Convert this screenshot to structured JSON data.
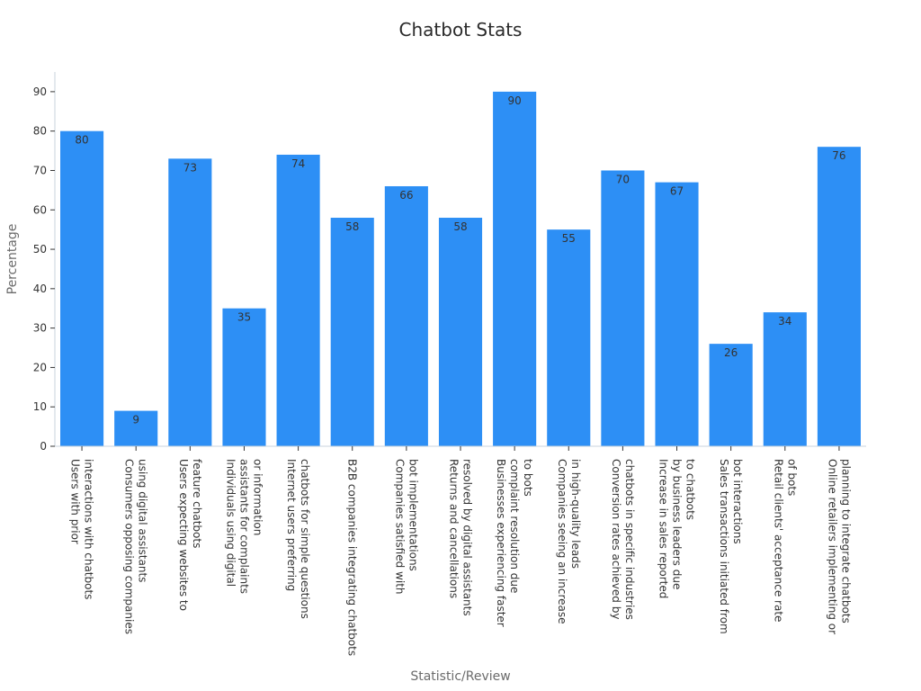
{
  "chart_data": {
    "type": "bar",
    "title": "Chatbot Stats",
    "xlabel": "Statistic/Review",
    "ylabel": "Percentage",
    "ylim": [
      0,
      95
    ],
    "yticks": [
      0,
      10,
      20,
      30,
      40,
      50,
      60,
      70,
      80,
      90
    ],
    "grid": false,
    "bar_color": "#2d8ff5",
    "categories": [
      [
        "Users with prior",
        "interactions with chatbots"
      ],
      [
        "Consumers opposing companies",
        "using digital assistants"
      ],
      [
        "Users expecting websites to",
        "feature chatbots"
      ],
      [
        "Individuals using digital",
        "assistants for complaints",
        "or information"
      ],
      [
        "Internet users preferring",
        "chatbots for simple questions"
      ],
      [
        "B2B companies integrating chatbots"
      ],
      [
        "Companies satisfied with",
        "bot implementations"
      ],
      [
        "Returns and cancellations",
        "resolved by digital assistants"
      ],
      [
        "Businesses experiencing faster",
        "complaint resolution due",
        "to bots"
      ],
      [
        "Companies seeing an increase",
        "in high-quality leads"
      ],
      [
        "Conversion rates achieved by",
        "chatbots in specific industries"
      ],
      [
        "Increase in sales reported",
        "by business leaders due",
        "to chatbots"
      ],
      [
        "Sales transactions initiated from",
        "bot interactions"
      ],
      [
        "Retail clients' acceptance rate",
        "of bots"
      ],
      [
        "Online retailers implementing or",
        "planning to integrate chatbots"
      ]
    ],
    "values": [
      80,
      9,
      73,
      35,
      74,
      58,
      66,
      58,
      90,
      55,
      70,
      67,
      26,
      34,
      76
    ]
  }
}
